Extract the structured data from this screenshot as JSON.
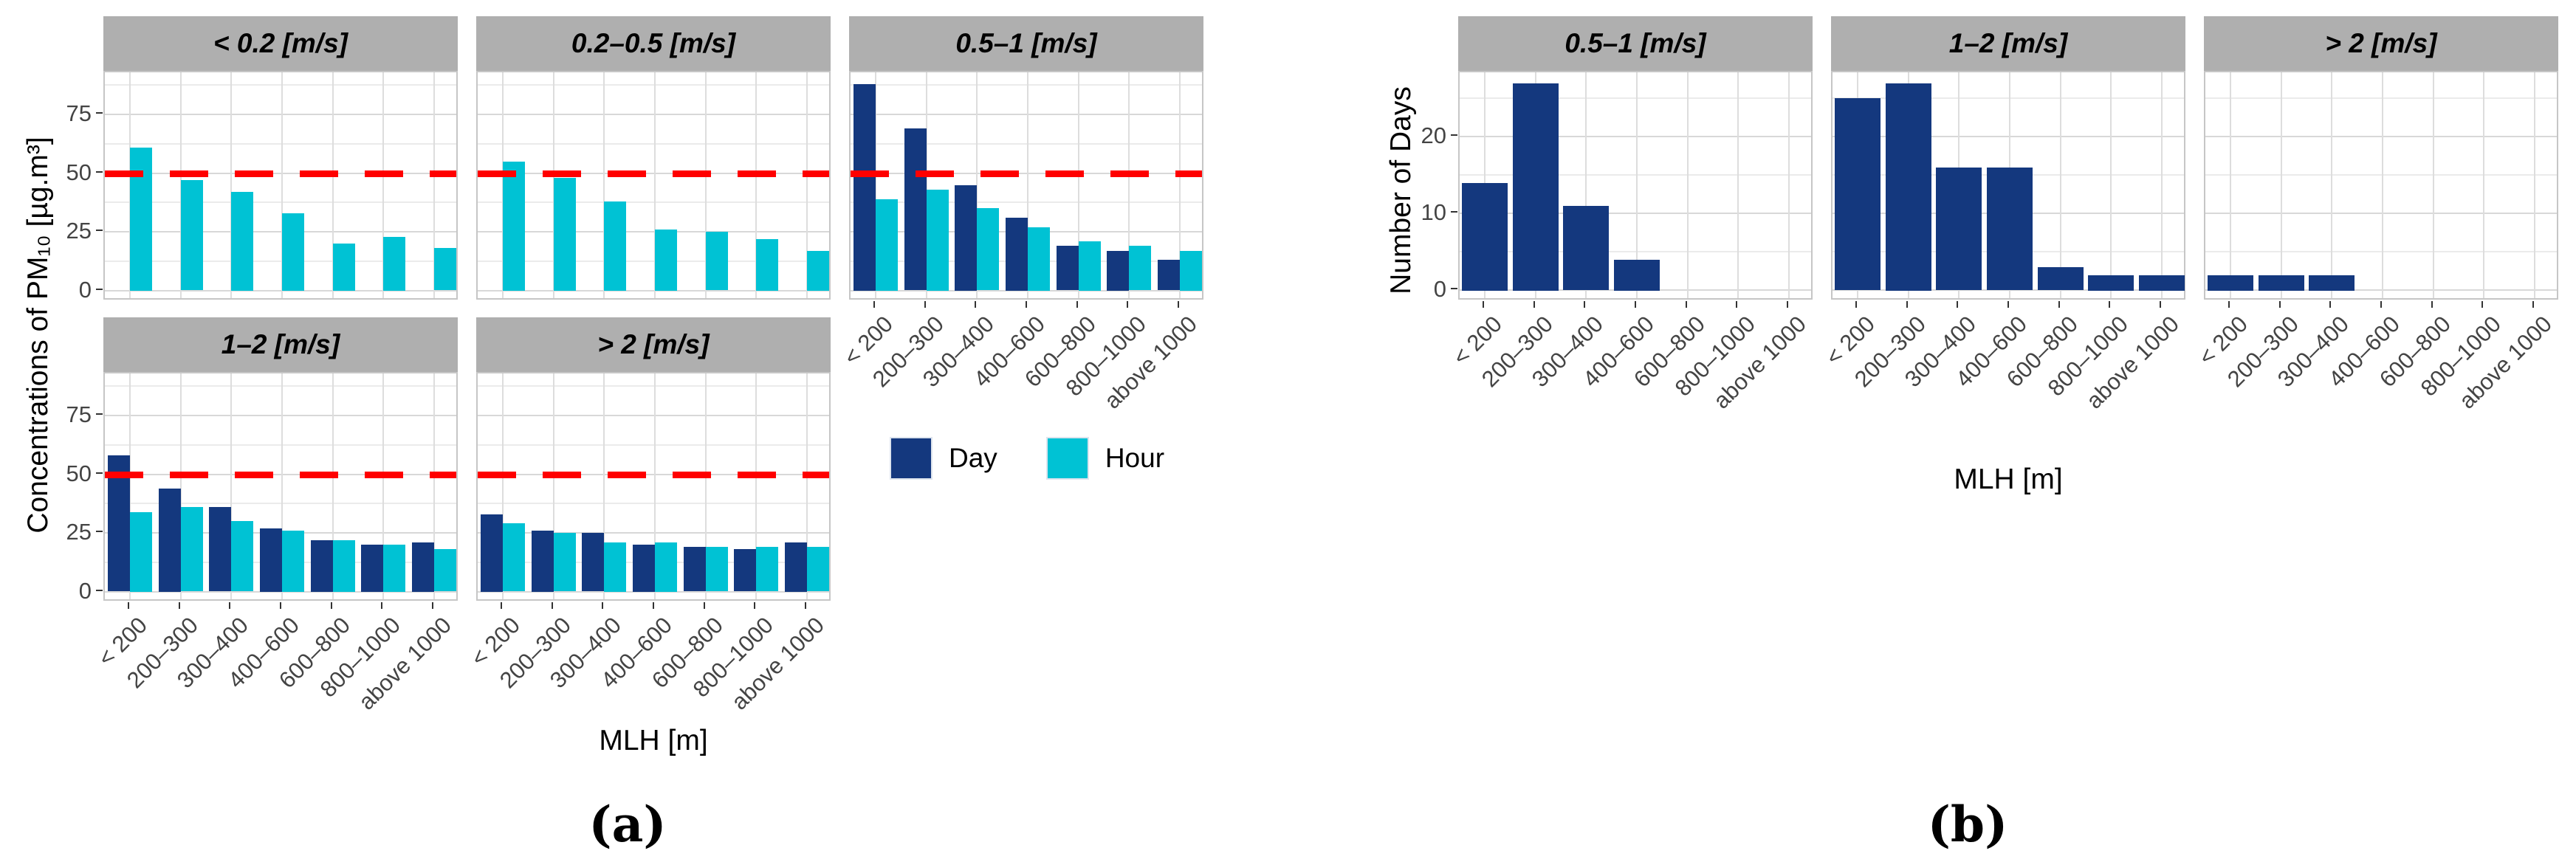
{
  "figure": {
    "caption_a": "(a)",
    "caption_b": "(b)"
  },
  "colors": {
    "day": "#14387E",
    "hour": "#00C2D4",
    "ref_line": "#FF0000",
    "strip_bg": "#AFAFAF",
    "axis_text": "#444444"
  },
  "legend": {
    "items": [
      {
        "label": "Day",
        "color": "#14387E"
      },
      {
        "label": "Hour",
        "color": "#00C2D4"
      }
    ]
  },
  "chart_data": [
    {
      "id": "a",
      "type": "bar",
      "ylabel": "Concentrations of PM₁₀ [µg.m³]",
      "xlabel": "MLH [m]",
      "categories": [
        "< 200",
        "200–300",
        "300–400",
        "400–600",
        "600–800",
        "800–1000",
        "above 1000"
      ],
      "ylim": [
        0,
        92
      ],
      "yticks": [
        0,
        25,
        50,
        75
      ],
      "yminor": [
        12.5,
        37.5,
        62.5,
        87.5
      ],
      "grid": true,
      "legend_position": "bottom-right-of-grid",
      "ref_line": {
        "y": 50,
        "color": "#FF0000",
        "style": "dashed"
      },
      "series_names": [
        "Day",
        "Hour"
      ],
      "facets": [
        {
          "label": "< 0.2 [m/s]",
          "Day": null,
          "Hour": [
            61,
            47,
            42,
            33,
            20,
            23,
            18
          ]
        },
        {
          "label": "0.2–0.5 [m/s]",
          "Day": null,
          "Hour": [
            55,
            48,
            38,
            26,
            25,
            22,
            17
          ]
        },
        {
          "label": "0.5–1 [m/s]",
          "Day": [
            88,
            69,
            45,
            31,
            19,
            17,
            13
          ],
          "Hour": [
            39,
            43,
            35,
            27,
            21,
            19,
            17
          ]
        },
        {
          "label": "1–2 [m/s]",
          "Day": [
            58,
            44,
            36,
            27,
            22,
            20,
            21
          ],
          "Hour": [
            34,
            36,
            30,
            26,
            22,
            20,
            18
          ]
        },
        {
          "label": "> 2 [m/s]",
          "Day": [
            33,
            26,
            25,
            20,
            19,
            18,
            21
          ],
          "Hour": [
            29,
            25,
            21,
            21,
            19,
            19,
            19
          ]
        }
      ]
    },
    {
      "id": "b",
      "type": "bar",
      "ylabel": "Number of Days",
      "xlabel": "MLH [m]",
      "categories": [
        "< 200",
        "200–300",
        "300–400",
        "400–600",
        "600–800",
        "800–1000",
        "above 1000"
      ],
      "ylim": [
        0,
        27
      ],
      "yticks": [
        0,
        10,
        20
      ],
      "yminor": [
        5,
        15,
        25
      ],
      "grid": true,
      "ref_line": null,
      "series_names": [
        "Day"
      ],
      "facets": [
        {
          "label": "0.5–1 [m/s]",
          "Day": [
            14,
            27,
            11,
            4,
            0,
            0,
            0
          ]
        },
        {
          "label": "1–2 [m/s]",
          "Day": [
            25,
            27,
            16,
            16,
            3,
            2,
            2
          ]
        },
        {
          "label": "> 2 [m/s]",
          "Day": [
            2,
            2,
            2,
            0,
            0,
            0,
            0
          ]
        }
      ]
    }
  ]
}
